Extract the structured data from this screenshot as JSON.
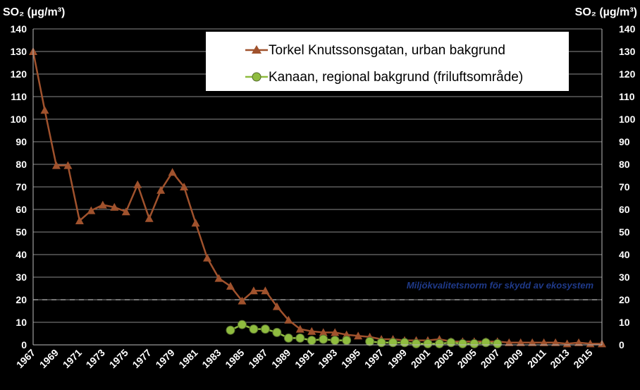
{
  "chart_data": {
    "type": "line",
    "ylabel_left": "SO₂ (µg/m³)",
    "ylabel_right": "SO₂ (µg/m³)",
    "ylim": [
      0,
      140
    ],
    "yticks": [
      0,
      10,
      20,
      30,
      40,
      50,
      60,
      70,
      80,
      90,
      100,
      110,
      120,
      130,
      140
    ],
    "xlim": [
      1967,
      2016
    ],
    "xticks": [
      1967,
      1969,
      1971,
      1973,
      1975,
      1977,
      1979,
      1981,
      1983,
      1985,
      1987,
      1989,
      1991,
      1993,
      1995,
      1997,
      1999,
      2001,
      2003,
      2005,
      2007,
      2009,
      2011,
      2013,
      2015
    ],
    "grid": true,
    "legend_position": "top-right",
    "reference_line": {
      "value": 20,
      "label": "Miljökvalitetsnorm för skydd av ekosystem",
      "style": "dashed"
    },
    "series": [
      {
        "name": "Torkel Knutssonsgatan, urban bakgrund",
        "color": "#a0522d",
        "marker": "triangle",
        "x": [
          1967,
          1968,
          1969,
          1970,
          1971,
          1972,
          1973,
          1974,
          1975,
          1976,
          1977,
          1978,
          1979,
          1980,
          1981,
          1982,
          1983,
          1984,
          1985,
          1986,
          1987,
          1988,
          1989,
          1990,
          1991,
          1992,
          1993,
          1994,
          1995,
          1996,
          1997,
          1998,
          1999,
          2000,
          2001,
          2002,
          2003,
          2004,
          2005,
          2006,
          2007,
          2008,
          2009,
          2010,
          2011,
          2012,
          2013,
          2014,
          2015,
          2016
        ],
        "y": [
          130,
          104,
          79.5,
          79.5,
          55,
          59.5,
          62,
          61,
          59,
          71,
          56,
          68.5,
          76.5,
          70,
          54,
          38.5,
          29.5,
          26,
          19.5,
          24,
          24,
          17,
          11,
          7,
          6,
          5.5,
          5.5,
          4.5,
          4,
          3.5,
          2.5,
          2.5,
          2,
          2,
          2,
          2.5,
          1.5,
          1.5,
          1.5,
          1.5,
          1.5,
          1,
          1,
          1,
          1,
          1,
          0.5,
          1,
          0.5,
          0.5
        ]
      },
      {
        "name": "Kanaan, regional bakgrund (friluftsområde)",
        "color": "#8fbc3f",
        "marker": "circle",
        "x": [
          1984,
          1985,
          1986,
          1987,
          1988,
          1989,
          1990,
          1991,
          1992,
          1993,
          1994,
          1995,
          1996,
          1997,
          1998,
          1999,
          2000,
          2001,
          2002,
          2003,
          2004,
          2005,
          2006,
          2007
        ],
        "y": [
          6.5,
          9,
          7,
          7,
          5.5,
          3,
          3,
          2,
          2.5,
          2,
          2,
          null,
          1.5,
          1,
          1,
          1,
          0.5,
          0.5,
          0.5,
          1,
          0.5,
          0.5,
          1,
          0.5
        ]
      }
    ]
  }
}
